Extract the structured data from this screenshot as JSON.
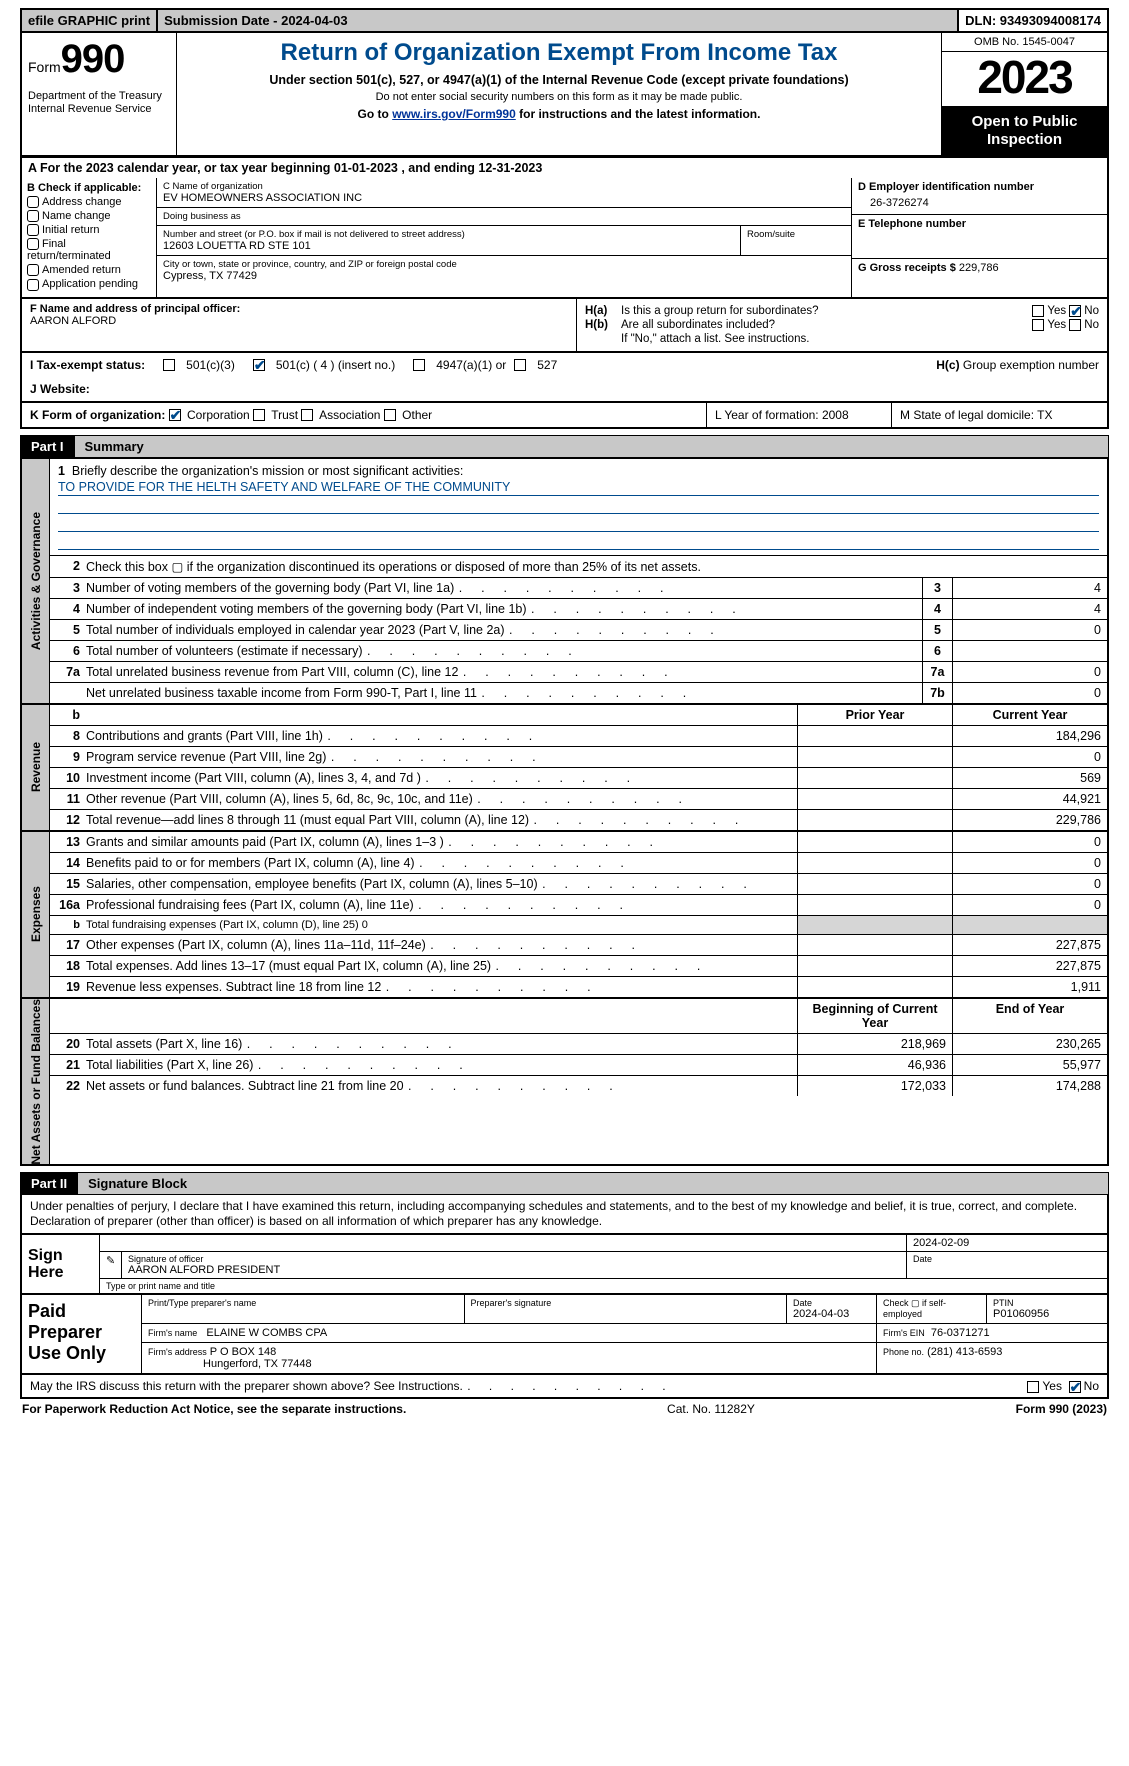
{
  "topbar": {
    "efile": "efile GRAPHIC print",
    "submission": "Submission Date - 2024-04-03",
    "dln": "DLN: 93493094008174"
  },
  "header": {
    "form_label": "Form",
    "form_num": "990",
    "dept": "Department of the Treasury\nInternal Revenue Service",
    "title": "Return of Organization Exempt From Income Tax",
    "sub1": "Under section 501(c), 527, or 4947(a)(1) of the Internal Revenue Code (except private foundations)",
    "sub2": "Do not enter social security numbers on this form as it may be made public.",
    "sub3_pre": "Go to ",
    "sub3_link": "www.irs.gov/Form990",
    "sub3_post": " for instructions and the latest information.",
    "omb": "OMB No. 1545-0047",
    "year": "2023",
    "open": "Open to Public Inspection"
  },
  "rowA": "A For the 2023 calendar year, or tax year beginning 01-01-2023    , and ending 12-31-2023",
  "B": {
    "label": "B Check if applicable:",
    "items": [
      "Address change",
      "Name change",
      "Initial return",
      "Final return/terminated",
      "Amended return",
      "Application pending"
    ]
  },
  "C": {
    "name_label": "C Name of organization",
    "name": "EV HOMEOWNERS ASSOCIATION INC",
    "dba_label": "Doing business as",
    "dba": "",
    "street_label": "Number and street (or P.O. box if mail is not delivered to street address)",
    "room_label": "Room/suite",
    "street": "12603 LOUETTA RD STE 101",
    "city_label": "City or town, state or province, country, and ZIP or foreign postal code",
    "city": "Cypress, TX  77429"
  },
  "D": {
    "label": "D Employer identification number",
    "val": "26-3726274"
  },
  "E": {
    "label": "E Telephone number",
    "val": ""
  },
  "G": {
    "label": "G Gross receipts $",
    "val": "229,786"
  },
  "F": {
    "label": "F  Name and address of principal officer:",
    "val": "AARON ALFORD"
  },
  "H": {
    "a": "Is this a group return for subordinates?",
    "b": "Are all subordinates included?",
    "b2": "If \"No,\" attach a list. See instructions.",
    "c": "Group exemption number",
    "yes": "Yes",
    "no": "No"
  },
  "I": {
    "label": "I   Tax-exempt status:",
    "o1": "501(c)(3)",
    "o2": "501(c) ( 4 ) (insert no.)",
    "o3": "4947(a)(1) or",
    "o4": "527"
  },
  "J": {
    "label": "J   Website:"
  },
  "K": {
    "label": "K Form of organization:",
    "o": [
      "Corporation",
      "Trust",
      "Association",
      "Other"
    ]
  },
  "L": {
    "label": "L Year of formation: 2008"
  },
  "M": {
    "label": "M State of legal domicile: TX"
  },
  "part1": {
    "bar": "Part I",
    "title": "Summary"
  },
  "p1": {
    "briefly": "Briefly describe the organization's mission or most significant activities:",
    "mission": "TO PROVIDE FOR THE HELTH SAFETY AND WELFARE OF THE COMMUNITY",
    "line2": "Check this box ▢ if the organization discontinued its operations or disposed of more than 25% of its net assets.",
    "rows_ag": [
      {
        "n": "3",
        "d": "Number of voting members of the governing body (Part VI, line 1a)",
        "b": "3",
        "c": "4"
      },
      {
        "n": "4",
        "d": "Number of independent voting members of the governing body (Part VI, line 1b)",
        "b": "4",
        "c": "4"
      },
      {
        "n": "5",
        "d": "Total number of individuals employed in calendar year 2023 (Part V, line 2a)",
        "b": "5",
        "c": "0"
      },
      {
        "n": "6",
        "d": "Total number of volunteers (estimate if necessary)",
        "b": "6",
        "c": ""
      },
      {
        "n": "7a",
        "d": "Total unrelated business revenue from Part VIII, column (C), line 12",
        "b": "7a",
        "c": "0"
      },
      {
        "n": "",
        "d": "Net unrelated business taxable income from Form 990-T, Part I, line 11",
        "b": "7b",
        "c": "0"
      }
    ],
    "hdr_b": "b",
    "hdr_prior": "Prior Year",
    "hdr_cur": "Current Year",
    "rows_rev": [
      {
        "n": "8",
        "d": "Contributions and grants (Part VIII, line 1h)",
        "p": "",
        "c": "184,296"
      },
      {
        "n": "9",
        "d": "Program service revenue (Part VIII, line 2g)",
        "p": "",
        "c": "0"
      },
      {
        "n": "10",
        "d": "Investment income (Part VIII, column (A), lines 3, 4, and 7d )",
        "p": "",
        "c": "569"
      },
      {
        "n": "11",
        "d": "Other revenue (Part VIII, column (A), lines 5, 6d, 8c, 9c, 10c, and 11e)",
        "p": "",
        "c": "44,921"
      },
      {
        "n": "12",
        "d": "Total revenue—add lines 8 through 11 (must equal Part VIII, column (A), line 12)",
        "p": "",
        "c": "229,786"
      }
    ],
    "rows_exp": [
      {
        "n": "13",
        "d": "Grants and similar amounts paid (Part IX, column (A), lines 1–3 )",
        "p": "",
        "c": "0"
      },
      {
        "n": "14",
        "d": "Benefits paid to or for members (Part IX, column (A), line 4)",
        "p": "",
        "c": "0"
      },
      {
        "n": "15",
        "d": "Salaries, other compensation, employee benefits (Part IX, column (A), lines 5–10)",
        "p": "",
        "c": "0"
      },
      {
        "n": "16a",
        "d": "Professional fundraising fees (Part IX, column (A), line 11e)",
        "p": "",
        "c": "0"
      },
      {
        "n": "b",
        "d": "Total fundraising expenses (Part IX, column (D), line 25) 0",
        "p": "",
        "c": "",
        "shade": true,
        "small": true
      },
      {
        "n": "17",
        "d": "Other expenses (Part IX, column (A), lines 11a–11d, 11f–24e)",
        "p": "",
        "c": "227,875"
      },
      {
        "n": "18",
        "d": "Total expenses. Add lines 13–17 (must equal Part IX, column (A), line 25)",
        "p": "",
        "c": "227,875"
      },
      {
        "n": "19",
        "d": "Revenue less expenses. Subtract line 18 from line 12",
        "p": "",
        "c": "1,911"
      }
    ],
    "hdr_boy": "Beginning of Current Year",
    "hdr_eoy": "End of Year",
    "rows_na": [
      {
        "n": "20",
        "d": "Total assets (Part X, line 16)",
        "p": "218,969",
        "c": "230,265"
      },
      {
        "n": "21",
        "d": "Total liabilities (Part X, line 26)",
        "p": "46,936",
        "c": "55,977"
      },
      {
        "n": "22",
        "d": "Net assets or fund balances. Subtract line 21 from line 20",
        "p": "172,033",
        "c": "174,288"
      }
    ],
    "sidelabels": [
      "Activities & Governance",
      "Revenue",
      "Expenses",
      "Net Assets or Fund Balances"
    ]
  },
  "part2": {
    "bar": "Part II",
    "title": "Signature Block"
  },
  "p2": {
    "decl": "Under penalties of perjury, I declare that I have examined this return, including accompanying schedules and statements, and to the best of my knowledge and belief, it is true, correct, and complete. Declaration of preparer (other than officer) is based on all information of which preparer has any knowledge.",
    "sign_here": "Sign Here",
    "sig_officer_lab": "Signature of officer",
    "sig_officer": "AARON ALFORD  PRESIDENT",
    "sig_type_lab": "Type or print name and title",
    "sig_date": "2024-02-09",
    "date_lab": "Date",
    "paid": "Paid Preparer Use Only",
    "prep_name_lab": "Print/Type preparer's name",
    "prep_sig_lab": "Preparer's signature",
    "prep_date_lab": "Date",
    "prep_date": "2024-04-03",
    "prep_check": "Check ▢ if self-employed",
    "ptin_lab": "PTIN",
    "ptin": "P01060956",
    "firm_name_lab": "Firm's name",
    "firm_name": "ELAINE W COMBS CPA",
    "firm_ein_lab": "Firm's EIN",
    "firm_ein": "76-0371271",
    "firm_addr_lab": "Firm's address",
    "firm_addr1": "P O BOX 148",
    "firm_addr2": "Hungerford, TX  77448",
    "phone_lab": "Phone no.",
    "phone": "(281) 413-6593",
    "discuss": "May the IRS discuss this return with the preparer shown above? See Instructions.",
    "yes": "Yes",
    "no": "No"
  },
  "footer": {
    "pra": "For Paperwork Reduction Act Notice, see the separate instructions.",
    "cat": "Cat. No. 11282Y",
    "form": "Form 990 (2023)"
  }
}
